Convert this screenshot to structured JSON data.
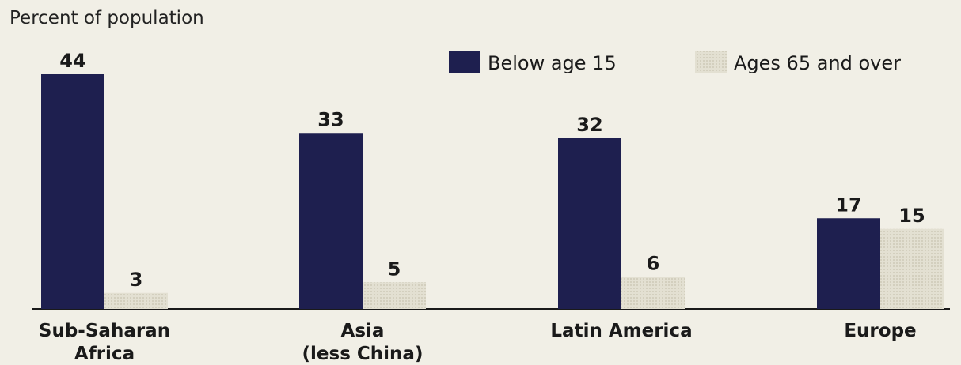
{
  "chart_data": {
    "type": "bar",
    "ylabel": "Percent of population",
    "categories": [
      [
        "Sub-Saharan",
        "Africa"
      ],
      [
        "Asia",
        "(less China)"
      ],
      [
        "Latin America"
      ],
      [
        "Europe"
      ]
    ],
    "series": [
      {
        "name": "Below age 15",
        "values": [
          44,
          33,
          32,
          17
        ],
        "color": "#1e1f4f"
      },
      {
        "name": "Ages 65 and over",
        "values": [
          3,
          5,
          6,
          15
        ],
        "color": "#e1decf"
      }
    ],
    "ylim": [
      0,
      44
    ],
    "grid": false,
    "legend_position": "top-right"
  }
}
